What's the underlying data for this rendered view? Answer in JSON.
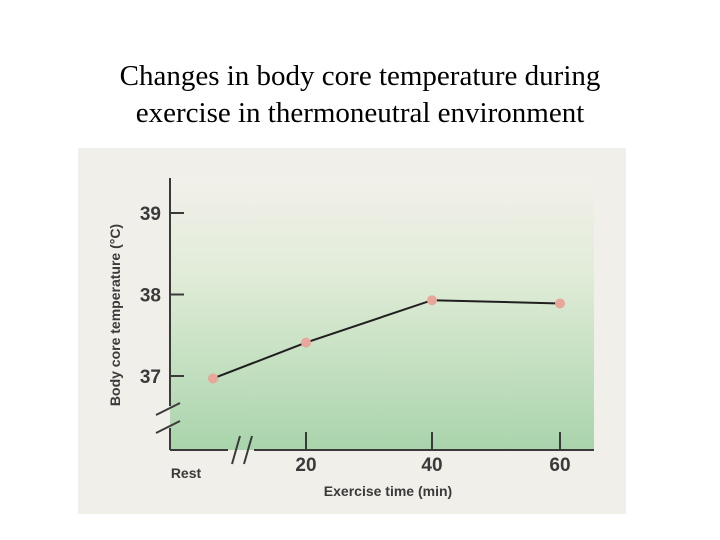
{
  "slide": {
    "title_line1": "Changes in body core temperature during",
    "title_line2": "exercise in thermoneutral environment"
  },
  "chart_data": {
    "type": "line",
    "title": "",
    "xlabel": "Exercise time (min)",
    "ylabel": "Body core temperature (°C)",
    "ylim": [
      36.5,
      39.4
    ],
    "x_tick_labels": [
      "Rest",
      "20",
      "40",
      "60"
    ],
    "y_ticks": [
      37,
      38,
      39
    ],
    "y_tick_labels": [
      "37",
      "38",
      "39"
    ],
    "axis_breaks": true,
    "grid": false,
    "series": [
      {
        "x": [
          "Rest",
          "20",
          "40",
          "60"
        ],
        "values": [
          36.97,
          37.41,
          37.93,
          37.89
        ],
        "color": "#e8a79a",
        "line_color": "#1f1f1f"
      }
    ],
    "colors": {
      "panel_top": "#f2f0ea",
      "panel_bottom": "#a9d4ab",
      "axis": "#3a3a3a"
    }
  }
}
